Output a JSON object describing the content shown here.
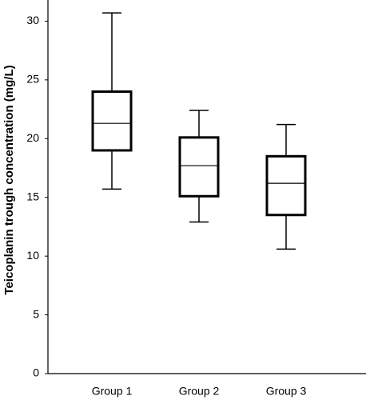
{
  "chart_data": {
    "type": "box",
    "y_label": "Teicoplanin trough concentration (mg/L)",
    "categories": [
      "Group 1",
      "Group 2",
      "Group 3"
    ],
    "boxes": [
      {
        "whisker_low": 15.7,
        "q1": 19.0,
        "median": 21.3,
        "q3": 24.0,
        "whisker_high": 30.7
      },
      {
        "whisker_low": 12.9,
        "q1": 15.1,
        "median": 17.7,
        "q3": 20.1,
        "whisker_high": 22.4
      },
      {
        "whisker_low": 10.6,
        "q1": 13.5,
        "median": 16.2,
        "q3": 18.5,
        "whisker_high": 21.2
      }
    ],
    "color": "#000000",
    "ylim": [
      0,
      31.8
    ],
    "yticks": [
      0,
      5,
      10,
      15,
      20,
      25,
      30
    ]
  }
}
